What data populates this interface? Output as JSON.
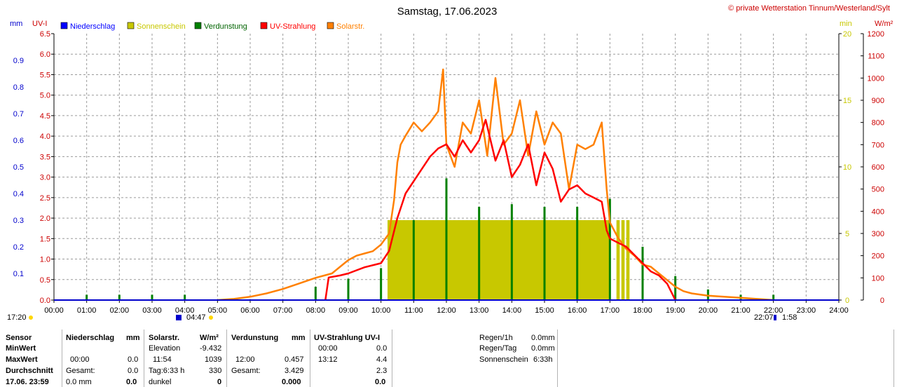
{
  "chart_data": {
    "type": "line",
    "title": "Samstag, 17.06.2023",
    "copyright": "© private Wetterstation Tinnum/Westerland/Sylt",
    "left_units": [
      "mm",
      "UV-I"
    ],
    "right_units": [
      "min",
      "W/m²"
    ],
    "legend": [
      {
        "name": "Niederschlag",
        "color": "#0000ff"
      },
      {
        "name": "Sonnenschein",
        "color": "#c8c800"
      },
      {
        "name": "Verdunstung",
        "color": "#008000"
      },
      {
        "name": "UV-Strahlung",
        "color": "#ff0000"
      },
      {
        "name": "Solarstr.",
        "color": "#ff8000"
      }
    ],
    "x_ticks": [
      "00:00",
      "01:00",
      "02:00",
      "03:00",
      "04:00",
      "05:00",
      "06:00",
      "07:00",
      "08:00",
      "09:00",
      "10:00",
      "11:00",
      "12:00",
      "13:00",
      "14:00",
      "15:00",
      "16:00",
      "17:00",
      "18:00",
      "19:00",
      "20:00",
      "21:00",
      "22:00",
      "23:00",
      "24:00"
    ],
    "uv_ticks": [
      "0.0",
      "0.5",
      "1.0",
      "1.5",
      "2.0",
      "2.5",
      "3.0",
      "3.5",
      "4.0",
      "4.5",
      "5.0",
      "5.5",
      "6.0",
      "6.5"
    ],
    "mm_ticks": [
      "0.1",
      "0.2",
      "0.3",
      "0.4",
      "0.5",
      "0.6",
      "0.7",
      "0.8",
      "0.9"
    ],
    "min_ticks": [
      "0",
      "5",
      "10",
      "15",
      "20"
    ],
    "wm2_ticks": [
      "0",
      "100",
      "200",
      "300",
      "400",
      "500",
      "600",
      "700",
      "800",
      "900",
      "1000",
      "1100",
      "1200"
    ],
    "ylim_uv": [
      0,
      6.5
    ],
    "ylim_wm2": [
      0,
      1200
    ],
    "ylim_min": [
      0,
      20
    ],
    "ylim_mm": [
      0,
      1.0
    ],
    "xlim_h": [
      0,
      24
    ],
    "solar_series": [
      [
        5.0,
        0
      ],
      [
        5.5,
        5
      ],
      [
        6.0,
        15
      ],
      [
        6.5,
        30
      ],
      [
        7.0,
        50
      ],
      [
        7.5,
        75
      ],
      [
        8.0,
        100
      ],
      [
        8.5,
        120
      ],
      [
        8.75,
        150
      ],
      [
        9.0,
        180
      ],
      [
        9.25,
        200
      ],
      [
        9.5,
        210
      ],
      [
        9.75,
        220
      ],
      [
        10.0,
        250
      ],
      [
        10.25,
        300
      ],
      [
        10.4,
        450
      ],
      [
        10.5,
        620
      ],
      [
        10.6,
        700
      ],
      [
        10.75,
        740
      ],
      [
        11.0,
        800
      ],
      [
        11.25,
        760
      ],
      [
        11.5,
        800
      ],
      [
        11.75,
        850
      ],
      [
        11.9,
        1039
      ],
      [
        12.0,
        700
      ],
      [
        12.25,
        600
      ],
      [
        12.5,
        800
      ],
      [
        12.75,
        750
      ],
      [
        13.0,
        900
      ],
      [
        13.25,
        650
      ],
      [
        13.5,
        1000
      ],
      [
        13.75,
        700
      ],
      [
        14.0,
        750
      ],
      [
        14.25,
        900
      ],
      [
        14.5,
        650
      ],
      [
        14.75,
        850
      ],
      [
        15.0,
        700
      ],
      [
        15.25,
        800
      ],
      [
        15.5,
        750
      ],
      [
        15.75,
        500
      ],
      [
        16.0,
        700
      ],
      [
        16.25,
        680
      ],
      [
        16.5,
        700
      ],
      [
        16.75,
        800
      ],
      [
        16.9,
        500
      ],
      [
        17.0,
        350
      ],
      [
        17.25,
        280
      ],
      [
        17.5,
        230
      ],
      [
        17.75,
        200
      ],
      [
        18.0,
        160
      ],
      [
        18.25,
        150
      ],
      [
        18.5,
        120
      ],
      [
        18.75,
        90
      ],
      [
        19.0,
        60
      ],
      [
        19.25,
        40
      ],
      [
        19.5,
        30
      ],
      [
        20.0,
        20
      ],
      [
        20.5,
        15
      ],
      [
        21.0,
        10
      ],
      [
        21.5,
        5
      ],
      [
        22.0,
        0
      ]
    ],
    "uv_series": [
      [
        8.3,
        0
      ],
      [
        8.4,
        0.55
      ],
      [
        8.75,
        0.6
      ],
      [
        9.0,
        0.65
      ],
      [
        9.5,
        0.8
      ],
      [
        10.0,
        0.9
      ],
      [
        10.25,
        1.2
      ],
      [
        10.5,
        2.0
      ],
      [
        10.75,
        2.6
      ],
      [
        11.0,
        2.9
      ],
      [
        11.25,
        3.2
      ],
      [
        11.5,
        3.5
      ],
      [
        11.75,
        3.7
      ],
      [
        12.0,
        3.8
      ],
      [
        12.25,
        3.5
      ],
      [
        12.5,
        3.9
      ],
      [
        12.75,
        3.6
      ],
      [
        13.0,
        3.9
      ],
      [
        13.2,
        4.4
      ],
      [
        13.5,
        3.4
      ],
      [
        13.75,
        3.9
      ],
      [
        14.0,
        3.0
      ],
      [
        14.25,
        3.3
      ],
      [
        14.5,
        3.8
      ],
      [
        14.75,
        2.8
      ],
      [
        15.0,
        3.6
      ],
      [
        15.25,
        3.2
      ],
      [
        15.5,
        2.4
      ],
      [
        15.75,
        2.7
      ],
      [
        16.0,
        2.8
      ],
      [
        16.25,
        2.6
      ],
      [
        16.5,
        2.5
      ],
      [
        16.75,
        2.4
      ],
      [
        16.9,
        1.7
      ],
      [
        17.0,
        1.5
      ],
      [
        17.25,
        1.4
      ],
      [
        17.5,
        1.3
      ],
      [
        17.75,
        1.1
      ],
      [
        18.0,
        0.9
      ],
      [
        18.25,
        0.7
      ],
      [
        18.5,
        0.6
      ],
      [
        18.75,
        0.4
      ],
      [
        19.0,
        0.0
      ]
    ],
    "evap_bars": [
      [
        1.0,
        0.02
      ],
      [
        2.0,
        0.02
      ],
      [
        3.0,
        0.02
      ],
      [
        4.0,
        0.02
      ],
      [
        8.0,
        0.05
      ],
      [
        9.0,
        0.08
      ],
      [
        10.0,
        0.12
      ],
      [
        11.0,
        0.3
      ],
      [
        12.0,
        0.457
      ],
      [
        13.0,
        0.35
      ],
      [
        14.0,
        0.36
      ],
      [
        15.0,
        0.35
      ],
      [
        16.0,
        0.35
      ],
      [
        17.0,
        0.38
      ],
      [
        18.0,
        0.2
      ],
      [
        19.0,
        0.09
      ],
      [
        20.0,
        0.04
      ],
      [
        21.0,
        0.02
      ],
      [
        22.0,
        0.02
      ]
    ],
    "sunshine_segments": [
      [
        10.2,
        17.0
      ],
      [
        17.2,
        17.3
      ],
      [
        17.35,
        17.45
      ],
      [
        17.5,
        17.6
      ]
    ],
    "sunshine_minutes": 6,
    "markers": {
      "moonrise": "17:20",
      "sunrise": "04:47",
      "sunset": "22:07",
      "moonset": "1:58"
    }
  },
  "table": {
    "sensor_header": "Sensor",
    "row_min": "MinWert",
    "row_max": "MaxWert",
    "row_avg": "Durchschnitt",
    "row_date": "17.06. 23:59",
    "rain": {
      "header": "Niederschlag",
      "unit": "mm",
      "max_time": "00:00",
      "max_val": "0.0",
      "total_label": "Gesamt:",
      "total_val": "0.0",
      "current": "0.0 mm",
      "current_bold": "0.0"
    },
    "solar": {
      "header": "Solarstr.",
      "unit": "W/m²",
      "elev_label": "Elevation",
      "elev_val": "-9.432",
      "max_time": "11:54",
      "max_val": "1039",
      "day_label": "Tag:6:33 h",
      "day_val": "330",
      "current": "dunkel",
      "current_bold": "0"
    },
    "evap": {
      "header": "Verdunstung",
      "unit": "mm",
      "max_time": "12:00",
      "max_val": "0.457",
      "total_label": "Gesamt:",
      "total_val": "3.429",
      "current_bold": "0.000"
    },
    "uv": {
      "header": "UV-Strahlung UV-I",
      "min_time": "00:00",
      "min_val": "0.0",
      "max_time": "13:12",
      "max_val": "4.4",
      "avg_val": "2.3",
      "current_bold": "0.0"
    },
    "extra": {
      "rain1h_label": "Regen/1h",
      "rain1h_val": "0.0mm",
      "rainday_label": "Regen/Tag",
      "rainday_val": "0.0mm",
      "sun_label": "Sonnenschein",
      "sun_val": "6:33h"
    }
  }
}
